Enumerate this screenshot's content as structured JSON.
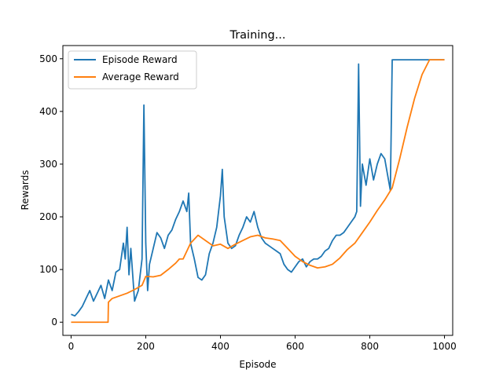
{
  "chart_data": {
    "type": "line",
    "title": "Training...",
    "xlabel": "Episode",
    "ylabel": "Rewards",
    "xlim": [
      -22,
      1022
    ],
    "ylim": [
      -25,
      525
    ],
    "xticks": [
      0,
      200,
      400,
      600,
      800,
      1000
    ],
    "yticks": [
      0,
      100,
      200,
      300,
      400,
      500
    ],
    "grid": false,
    "legend": "top-left",
    "series": [
      {
        "name": "Episode Reward",
        "color": "#1f77b4",
        "x": [
          0,
          10,
          20,
          30,
          40,
          50,
          60,
          70,
          80,
          90,
          100,
          110,
          120,
          130,
          140,
          145,
          150,
          155,
          160,
          170,
          180,
          190,
          195,
          200,
          205,
          210,
          220,
          230,
          240,
          250,
          260,
          270,
          280,
          290,
          300,
          310,
          315,
          320,
          330,
          340,
          350,
          360,
          370,
          380,
          390,
          400,
          405,
          410,
          420,
          430,
          440,
          450,
          460,
          470,
          480,
          490,
          500,
          510,
          520,
          530,
          540,
          550,
          560,
          570,
          580,
          590,
          600,
          610,
          620,
          630,
          640,
          650,
          660,
          670,
          680,
          690,
          700,
          710,
          720,
          730,
          740,
          750,
          760,
          765,
          770,
          775,
          780,
          790,
          800,
          810,
          820,
          830,
          840,
          850,
          855,
          860,
          870,
          880,
          900,
          950,
          1000
        ],
        "values": [
          15,
          12,
          20,
          30,
          45,
          60,
          40,
          55,
          70,
          45,
          80,
          60,
          95,
          100,
          150,
          120,
          180,
          90,
          140,
          40,
          60,
          120,
          412,
          150,
          60,
          110,
          140,
          170,
          160,
          140,
          165,
          175,
          195,
          210,
          230,
          210,
          245,
          150,
          120,
          85,
          80,
          90,
          130,
          150,
          180,
          240,
          290,
          200,
          150,
          140,
          145,
          165,
          180,
          200,
          190,
          210,
          180,
          160,
          150,
          145,
          140,
          135,
          130,
          110,
          100,
          95,
          105,
          115,
          120,
          105,
          115,
          120,
          120,
          125,
          135,
          140,
          155,
          165,
          165,
          170,
          180,
          190,
          200,
          210,
          490,
          220,
          300,
          260,
          310,
          270,
          300,
          320,
          310,
          270,
          250,
          498,
          498,
          498,
          498,
          498,
          498
        ]
      },
      {
        "name": "Average Reward",
        "color": "#ff7f0e",
        "x": [
          0,
          99,
          100,
          110,
          130,
          150,
          170,
          190,
          200,
          220,
          240,
          260,
          280,
          290,
          300,
          320,
          340,
          360,
          380,
          400,
          420,
          440,
          460,
          480,
          500,
          520,
          540,
          560,
          580,
          600,
          620,
          640,
          660,
          680,
          700,
          720,
          740,
          760,
          780,
          800,
          820,
          840,
          860,
          880,
          900,
          920,
          940,
          960,
          980,
          1000
        ],
        "values": [
          0,
          0,
          38,
          45,
          50,
          55,
          62,
          70,
          87,
          86,
          89,
          100,
          112,
          120,
          120,
          150,
          165,
          155,
          145,
          148,
          140,
          148,
          155,
          162,
          165,
          160,
          158,
          155,
          140,
          125,
          115,
          108,
          103,
          105,
          110,
          122,
          138,
          150,
          170,
          190,
          212,
          232,
          255,
          310,
          370,
          425,
          470,
          498,
          498,
          498
        ]
      }
    ]
  }
}
